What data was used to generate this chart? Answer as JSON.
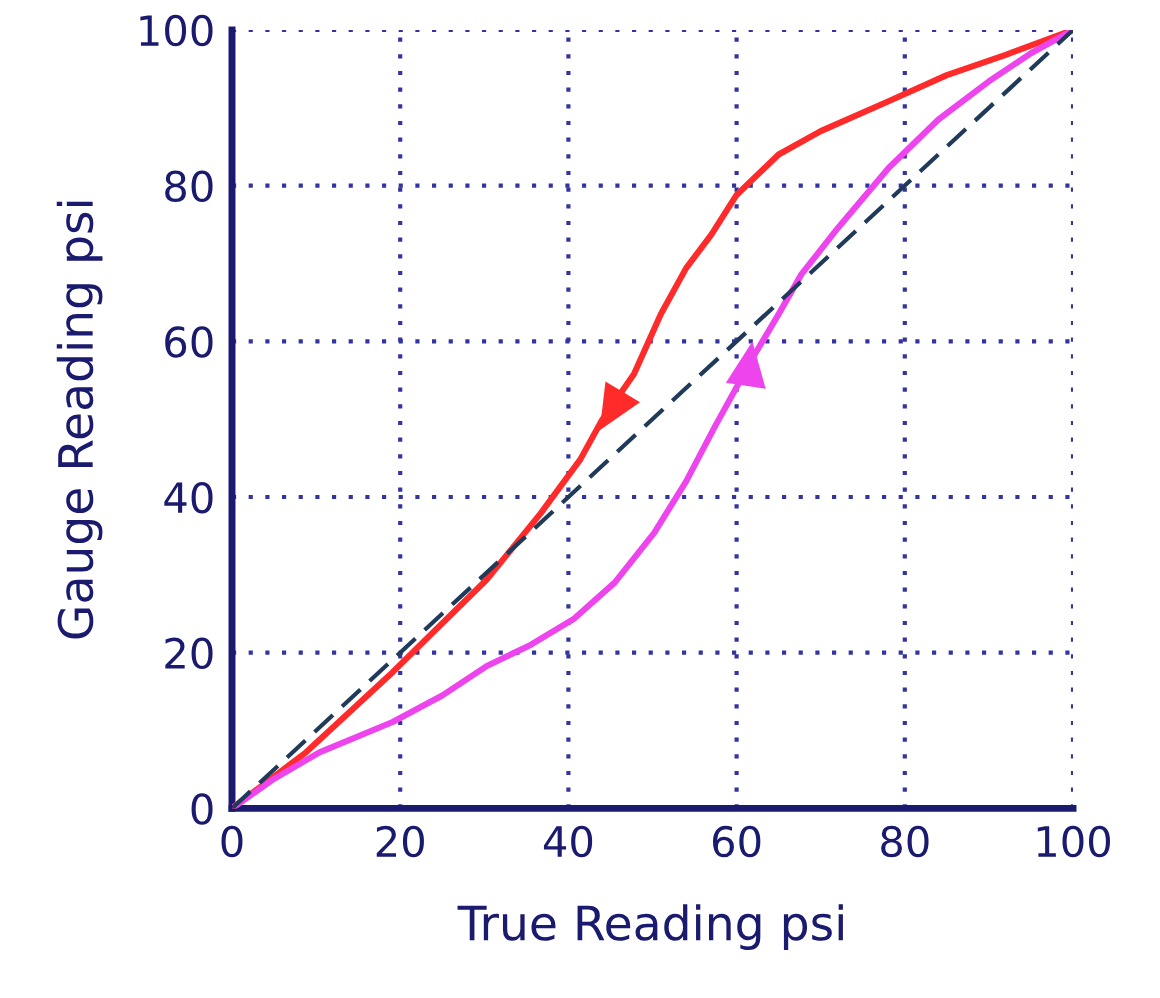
{
  "chart_data": {
    "type": "line",
    "xlabel": "True Reading psi",
    "ylabel": "Gauge Reading psi",
    "xlim": [
      0,
      100
    ],
    "ylim": [
      0,
      100
    ],
    "xticks": [
      0,
      20,
      40,
      60,
      80,
      100
    ],
    "yticks": [
      0,
      20,
      40,
      60,
      80,
      100
    ],
    "grid": true,
    "series": [
      {
        "color": "#ff2a2a",
        "x": [
          0,
          8.8,
          19.1,
          30.3,
          36.7,
          41.4,
          44,
          47.8,
          51,
          54,
          57,
          60,
          65,
          70,
          78,
          85,
          92,
          100
        ],
        "values": [
          0,
          7.2,
          17.5,
          29.4,
          37.9,
          44.8,
          49.9,
          55.8,
          63.5,
          69.4,
          73.7,
          78.8,
          84,
          87,
          90.8,
          94.2,
          96.8,
          100
        ]
      },
      {
        "color": "#ee44ee",
        "x": [
          0,
          5,
          10.4,
          19.1,
          25,
          30.3,
          35.5,
          40.6,
          45.5,
          50.2,
          54,
          57.4,
          62.2,
          65,
          67.7,
          72,
          78.1,
          84,
          90,
          95,
          100
        ],
        "values": [
          0,
          3.8,
          7.2,
          11.1,
          14.5,
          18.3,
          21,
          24.3,
          29,
          35.4,
          42,
          49,
          58.4,
          63.5,
          68.6,
          74.5,
          82.3,
          88.5,
          93.4,
          97,
          100
        ]
      },
      {
        "color": "#203a5a",
        "line_style": "dashed",
        "x": [
          0,
          100
        ],
        "values": [
          0,
          100
        ]
      }
    ]
  }
}
